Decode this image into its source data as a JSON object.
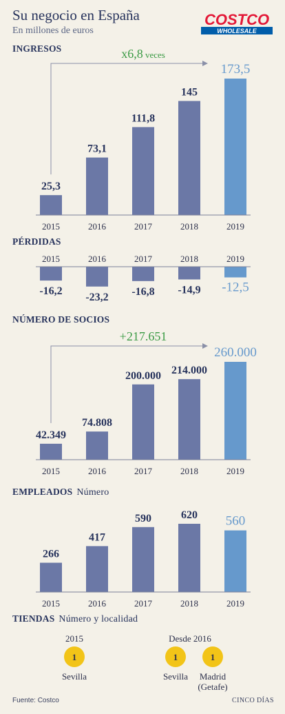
{
  "header": {
    "title": "Su negocio en España",
    "subtitle": "En millones de euros",
    "logo_text_top": "COSTCO",
    "logo_text_bottom": "WHOLESALE"
  },
  "colors": {
    "bar": "#6b78a6",
    "highlight": "#6699cc",
    "accent_green": "#3a9a44",
    "badge": "#f2c418"
  },
  "chart_data": [
    {
      "type": "bar",
      "title": "INGRESOS",
      "categories": [
        "2015",
        "2016",
        "2017",
        "2018",
        "2019"
      ],
      "values": [
        25.3,
        73.1,
        111.8,
        145,
        173.5
      ],
      "value_labels": [
        "25,3",
        "73,1",
        "111,8",
        "145",
        "173,5"
      ],
      "annotation": {
        "big": "x6,8",
        "small": "veces"
      }
    },
    {
      "type": "bar",
      "title": "PÉRDIDAS",
      "categories": [
        "2015",
        "2016",
        "2017",
        "2018",
        "2019"
      ],
      "values": [
        -16.2,
        -23.2,
        -16.8,
        -14.9,
        -12.5
      ],
      "value_labels": [
        "-16,2",
        "-23,2",
        "-16,8",
        "-14,9",
        "-12,5"
      ]
    },
    {
      "type": "bar",
      "title": "NÚMERO DE SOCIOS",
      "categories": [
        "2015",
        "2016",
        "2017",
        "2018",
        "2019"
      ],
      "values": [
        42349,
        74808,
        200000,
        214000,
        260000
      ],
      "value_labels": [
        "42.349",
        "74.808",
        "200.000",
        "214.000",
        "260.000"
      ],
      "annotation": {
        "big": "+217.651",
        "small": ""
      }
    },
    {
      "type": "bar",
      "title": "EMPLEADOS",
      "unit": "Número",
      "categories": [
        "2015",
        "2016",
        "2017",
        "2018",
        "2019"
      ],
      "values": [
        266,
        417,
        590,
        620,
        560
      ],
      "value_labels": [
        "266",
        "417",
        "590",
        "620",
        "560"
      ]
    }
  ],
  "tiendas": {
    "title": "TIENDAS",
    "unit": "Número y localidad",
    "groups": [
      {
        "label": "2015",
        "stores": [
          {
            "number": "1",
            "city": "Sevilla"
          }
        ]
      },
      {
        "label": "Desde 2016",
        "stores": [
          {
            "number": "1",
            "city": "Sevilla"
          },
          {
            "number": "1",
            "city": "Madrid (Getafe)"
          }
        ]
      }
    ]
  },
  "footer": {
    "source": "Fuente: Costco",
    "brand": "CINCO DÍAS"
  }
}
